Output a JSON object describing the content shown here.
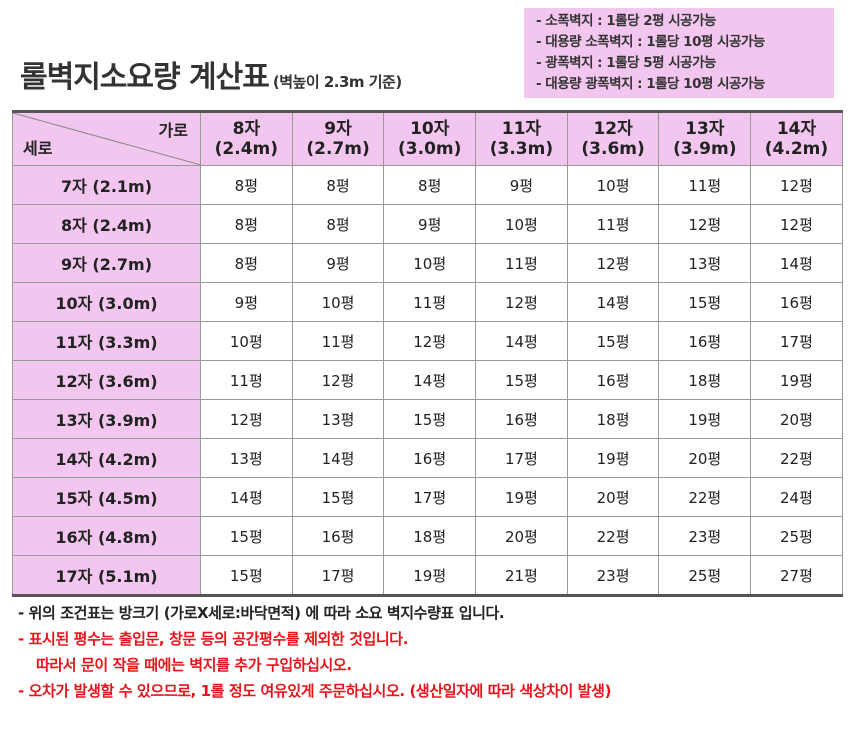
{
  "title": {
    "main": "롤벽지소요량 계산표",
    "sub": "(벽높이 2.3m 기준)"
  },
  "notes": [
    "- 소폭벽지 : 1롤당 2평 시공가능",
    "- 대용량 소폭벽지 : 1롤당 10평 시공가능",
    "- 광폭벽지 : 1롤당 5평 시공가능",
    "- 대용량 광폭벽지 : 1롤당 10평 시공가능"
  ],
  "table": {
    "corner_garo": "가로",
    "corner_sero": "세로",
    "columns": [
      {
        "top": "8자",
        "bottom": "(2.4m)"
      },
      {
        "top": "9자",
        "bottom": "(2.7m)"
      },
      {
        "top": "10자",
        "bottom": "(3.0m)"
      },
      {
        "top": "11자",
        "bottom": "(3.3m)"
      },
      {
        "top": "12자",
        "bottom": "(3.6m)"
      },
      {
        "top": "13자",
        "bottom": "(3.9m)"
      },
      {
        "top": "14자",
        "bottom": "(4.2m)"
      }
    ],
    "rows": [
      {
        "label": "7자 (2.1m)",
        "cells": [
          "8평",
          "8평",
          "8평",
          "9평",
          "10평",
          "11평",
          "12평"
        ]
      },
      {
        "label": "8자 (2.4m)",
        "cells": [
          "8평",
          "8평",
          "9평",
          "10평",
          "11평",
          "12평",
          "12평"
        ]
      },
      {
        "label": "9자 (2.7m)",
        "cells": [
          "8평",
          "9평",
          "10평",
          "11평",
          "12평",
          "13평",
          "14평"
        ]
      },
      {
        "label": "10자 (3.0m)",
        "cells": [
          "9평",
          "10평",
          "11평",
          "12평",
          "14평",
          "15평",
          "16평"
        ]
      },
      {
        "label": "11자 (3.3m)",
        "cells": [
          "10평",
          "11평",
          "12평",
          "14평",
          "15평",
          "16평",
          "17평"
        ]
      },
      {
        "label": "12자 (3.6m)",
        "cells": [
          "11평",
          "12평",
          "14평",
          "15평",
          "16평",
          "18평",
          "19평"
        ]
      },
      {
        "label": "13자 (3.9m)",
        "cells": [
          "12평",
          "13평",
          "15평",
          "16평",
          "18평",
          "19평",
          "20평"
        ]
      },
      {
        "label": "14자 (4.2m)",
        "cells": [
          "13평",
          "14평",
          "16평",
          "17평",
          "19평",
          "20평",
          "22평"
        ]
      },
      {
        "label": "15자 (4.5m)",
        "cells": [
          "14평",
          "15평",
          "17평",
          "19평",
          "20평",
          "22평",
          "24평"
        ]
      },
      {
        "label": "16자 (4.8m)",
        "cells": [
          "15평",
          "16평",
          "18평",
          "20평",
          "22평",
          "23평",
          "25평"
        ]
      },
      {
        "label": "17자 (5.1m)",
        "cells": [
          "15평",
          "17평",
          "19평",
          "21평",
          "23평",
          "25평",
          "27평"
        ]
      }
    ]
  },
  "footer": {
    "line1": "- 위의 조건표는 방크기 (가로X세로:바닥면적) 에 따라 소요 벽지수량표 입니다.",
    "line2": "- 표시된 평수는 출입문, 창문 등의 공간평수를 제외한 것입니다.",
    "line3": "따라서 문이 작을 때에는 벽지를 추가 구입하십시오.",
    "line4": "- 오차가 발생할 수 있으므로, 1롤 정도 여유있게 주문하십시오. (생산일자에 따라 색상차이 발생)"
  },
  "colors": {
    "pink": "#f2c6ee",
    "red": "#e8141c"
  }
}
